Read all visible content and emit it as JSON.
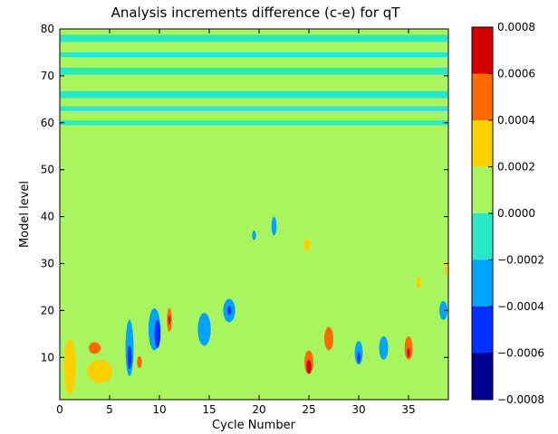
{
  "chart_data": {
    "type": "heatmap",
    "title": "Analysis increments difference (c-e) for qT",
    "xlabel": "Cycle Number",
    "ylabel": "Model level",
    "xlim": [
      0,
      39
    ],
    "ylim": [
      1,
      80
    ],
    "x_ticks": [
      0,
      5,
      10,
      15,
      20,
      25,
      30,
      35
    ],
    "y_ticks": [
      10,
      20,
      30,
      40,
      50,
      60,
      70,
      80
    ],
    "grid": false,
    "colorbar": {
      "levels": [
        -0.0008,
        -0.0006,
        -0.0004,
        -0.0002,
        0.0,
        0.0002,
        0.0004,
        0.0006,
        0.0008
      ],
      "tick_labels": [
        "−0.0008",
        "−0.0006",
        "−0.0004",
        "−0.0002",
        "0.0000",
        "0.0002",
        "0.0004",
        "0.0006",
        "0.0008"
      ],
      "colors": [
        "#00008f",
        "#0030ff",
        "#00a4ff",
        "#29e8c8",
        "#a8f560",
        "#ffd000",
        "#ff6a00",
        "#d40000"
      ]
    },
    "background_value": 0.0001,
    "features": [
      {
        "x": 1,
        "y": 8,
        "w": 1.2,
        "h": 12,
        "value": 0.0003
      },
      {
        "x": 4,
        "y": 7,
        "w": 2.5,
        "h": 5,
        "value": 0.0003
      },
      {
        "x": 3.5,
        "y": 12,
        "w": 1.2,
        "h": 2.5,
        "value": 0.0005
      },
      {
        "x": 7,
        "y": 12,
        "w": 0.8,
        "h": 12,
        "value": -0.0004
      },
      {
        "x": 7,
        "y": 10,
        "w": 0.4,
        "h": 5,
        "value": -0.0006
      },
      {
        "x": 8,
        "y": 9,
        "w": 0.5,
        "h": 2.5,
        "value": 0.0005
      },
      {
        "x": 9.5,
        "y": 16,
        "w": 1.2,
        "h": 9,
        "value": -0.0004
      },
      {
        "x": 9.8,
        "y": 15,
        "w": 0.6,
        "h": 6,
        "value": -0.0006
      },
      {
        "x": 11,
        "y": 18,
        "w": 0.5,
        "h": 5,
        "value": 0.0004
      },
      {
        "x": 11,
        "y": 18,
        "w": 0.2,
        "h": 2,
        "value": 0.0006
      },
      {
        "x": 14.5,
        "y": 16,
        "w": 1.3,
        "h": 7,
        "value": -0.0004
      },
      {
        "x": 17,
        "y": 20,
        "w": 1.2,
        "h": 5,
        "value": -0.0004
      },
      {
        "x": 17,
        "y": 20,
        "w": 0.4,
        "h": 2,
        "value": -0.0006
      },
      {
        "x": 21.5,
        "y": 38,
        "w": 0.5,
        "h": 4,
        "value": -0.0004
      },
      {
        "x": 19.5,
        "y": 36,
        "w": 0.4,
        "h": 2,
        "value": -0.0004
      },
      {
        "x": 24.8,
        "y": 34,
        "w": 0.7,
        "h": 2.5,
        "value": 0.0003
      },
      {
        "x": 25,
        "y": 9,
        "w": 0.9,
        "h": 5,
        "value": 0.0004
      },
      {
        "x": 25,
        "y": 8,
        "w": 0.5,
        "h": 3,
        "value": 0.0006
      },
      {
        "x": 27,
        "y": 14,
        "w": 0.9,
        "h": 5,
        "value": 0.0004
      },
      {
        "x": 30,
        "y": 11,
        "w": 0.8,
        "h": 5,
        "value": -0.0004
      },
      {
        "x": 30,
        "y": 10,
        "w": 0.3,
        "h": 2.5,
        "value": -0.0006
      },
      {
        "x": 32.5,
        "y": 12,
        "w": 0.9,
        "h": 5,
        "value": -0.0004
      },
      {
        "x": 35,
        "y": 12,
        "w": 0.8,
        "h": 5,
        "value": 0.0004
      },
      {
        "x": 35,
        "y": 11,
        "w": 0.3,
        "h": 2,
        "value": 0.0006
      },
      {
        "x": 38.5,
        "y": 20,
        "w": 0.8,
        "h": 4,
        "value": -0.0004
      },
      {
        "x": 38.8,
        "y": 29,
        "w": 0.4,
        "h": 3,
        "value": 0.0003
      },
      {
        "x": 36,
        "y": 26,
        "w": 0.5,
        "h": 2.5,
        "value": 0.0003
      }
    ],
    "bands": [
      {
        "y": 78,
        "h": 1.5,
        "value": -0.0001
      },
      {
        "y": 66,
        "h": 1.5,
        "value": -0.0001
      },
      {
        "y": 63,
        "h": 1,
        "value": -0.0001
      },
      {
        "y": 60,
        "h": 1,
        "value": -0.0001
      },
      {
        "y": 71,
        "h": 1.5,
        "value": -0.0001
      },
      {
        "y": 74.5,
        "h": 1,
        "value": -0.0001
      }
    ]
  }
}
